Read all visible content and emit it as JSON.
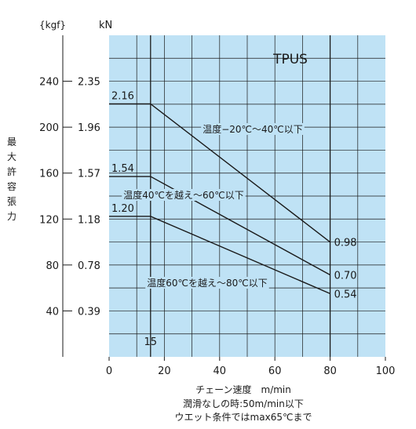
{
  "chart_data": {
    "type": "line",
    "title": "TPUS",
    "xlabel": "チェーン速度　m/min",
    "ylabel": "最大許容張力",
    "y_unit_left": "{kgf}",
    "y_unit_right": "kN",
    "xlim": [
      0,
      100
    ],
    "ylim_kgf": [
      0,
      280
    ],
    "x_ticks": [
      0,
      20,
      40,
      60,
      80,
      100
    ],
    "y_ticks": [
      {
        "kgf": "240",
        "kn": "2.35",
        "value": 240
      },
      {
        "kgf": "200",
        "kn": "1.96",
        "value": 200
      },
      {
        "kgf": "160",
        "kn": "1.57",
        "value": 160
      },
      {
        "kgf": "120",
        "kn": "1.18",
        "value": 120
      },
      {
        "kgf": "80",
        "kn": "0.78",
        "value": 80
      },
      {
        "kgf": "40",
        "kn": "0.39",
        "value": 40
      }
    ],
    "grid": true,
    "extra_vlines": [
      15,
      80
    ],
    "marker_15_label": "15",
    "series": [
      {
        "name": "温度−20℃〜40℃以下",
        "x": [
          0,
          15,
          80
        ],
        "y_kN": [
          2.16,
          2.16,
          0.98
        ],
        "start_label": "2.16",
        "end_label": "0.98"
      },
      {
        "name": "温度40℃を越え〜60℃以下",
        "x": [
          0,
          15,
          80
        ],
        "y_kN": [
          1.54,
          1.54,
          0.7
        ],
        "start_label": "1.54",
        "end_label": "0.70"
      },
      {
        "name": "温度60℃を越え〜80℃以下",
        "x": [
          0,
          15,
          80
        ],
        "y_kN": [
          1.2,
          1.2,
          0.54
        ],
        "start_label": "1.20",
        "end_label": "0.54"
      }
    ]
  },
  "ylabel_chars": [
    "最",
    "大",
    "許",
    "容",
    "張",
    "力"
  ],
  "footnotes": [
    "潤滑なしの時:50m/min以下",
    "ウエット条件ではmax65℃まで"
  ],
  "colors": {
    "plot_bg": "#bfe2f5",
    "grid": "#1a1a1a",
    "line": "#1a1a1a",
    "text": "#1a1a1a"
  }
}
